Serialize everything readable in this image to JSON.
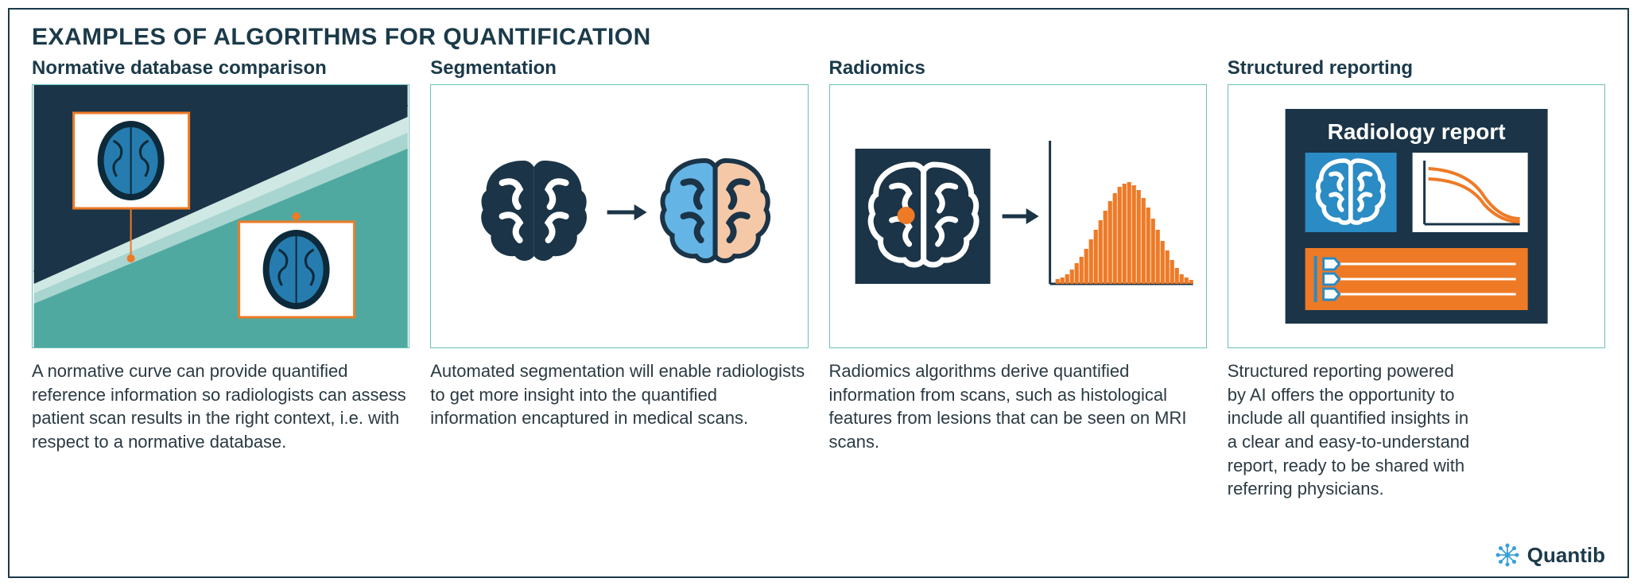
{
  "title": "EXAMPLES OF ALGORITHMS FOR QUANTIFICATION",
  "columns": [
    {
      "title": "Normative database comparison",
      "desc": "A normative curve can provide quantified reference information so radiologists can assess patient scan results in the right context, i.e. with respect to a normative database."
    },
    {
      "title": "Segmentation",
      "desc": "Automated segmentation will enable radiologists to get more insight into the quantified information encaptured in medical scans."
    },
    {
      "title": "Radiomics",
      "desc": "Radiomics algorithms derive quantified information from scans, such as histological features from lesions that can be seen on MRI scans."
    },
    {
      "title": "Structured reporting",
      "desc": "Structured reporting powered by AI offers the opportunity to include all quantified insights in a clear and easy-to-understand report, ready to be shared with referring physicians."
    }
  ],
  "panel4": {
    "report_title": "Radiology report"
  },
  "logo_text": "Quantib",
  "colors": {
    "dark_navy": "#1b3447",
    "teal": "#4fa9a0",
    "light_teal": "#a8d5cf",
    "paler_teal": "#cfe8e4",
    "orange": "#ee7a26",
    "blue": "#2b8bc4",
    "light_blue": "#64b5e6",
    "peach": "#f5c9a8",
    "white": "#ffffff",
    "logo_blue": "#3aa0d8"
  },
  "radiomics_bars": [
    6,
    8,
    12,
    18,
    26,
    34,
    44,
    56,
    68,
    80,
    92,
    104,
    114,
    122,
    126,
    128,
    124,
    118,
    108,
    96,
    82,
    68,
    54,
    42,
    30,
    20,
    12,
    8,
    5
  ],
  "radiomics_bar_color": "#ee7a26"
}
